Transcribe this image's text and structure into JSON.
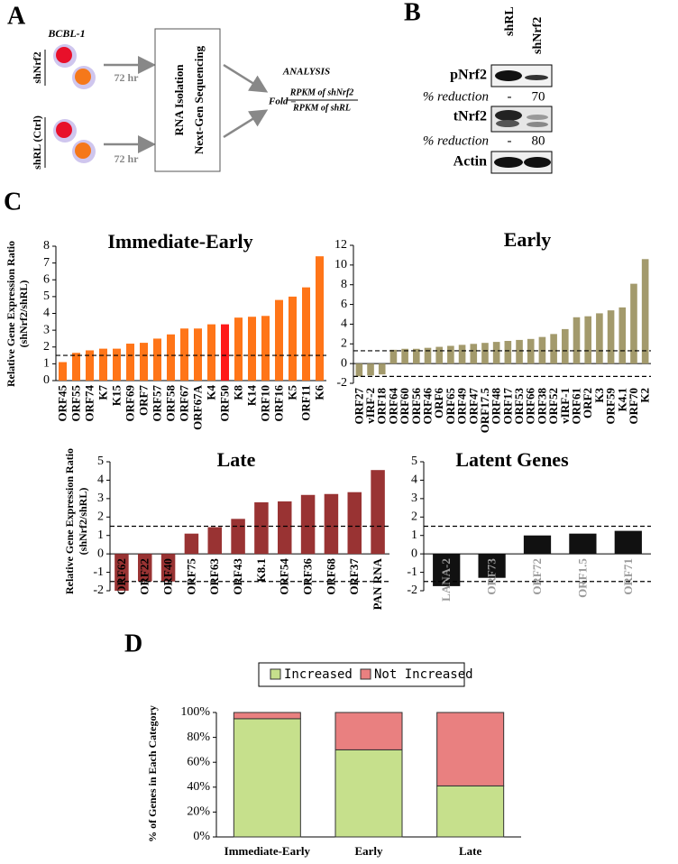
{
  "panel_labels": [
    "A",
    "B",
    "C",
    "D"
  ],
  "panel_a": {
    "cell_line": "BCBL-1",
    "groups": [
      "shNrf2",
      "shRL (Ctrl)"
    ],
    "incubation": [
      "72 hr",
      "72 hr"
    ],
    "process": [
      "RNA Isolation",
      "Next-Gen Sequencing"
    ],
    "analysis": "ANALYSIS",
    "fold_label": "Fold =",
    "numerator": "RPKM of shNrf2",
    "denominator": "RPKM of shRL"
  },
  "panel_b": {
    "lanes": [
      "shRL",
      "shNrf2"
    ],
    "blots": [
      "pNrf2",
      "tNrf2",
      "Actin"
    ],
    "reductions": [
      {
        "label": "% reduction",
        "values": [
          "-",
          70
        ]
      },
      {
        "label": "% reduction",
        "values": [
          "-",
          80
        ]
      }
    ]
  },
  "chart_data": [
    {
      "type": "bar",
      "title": "Immediate-Early",
      "y_label": [
        "Relative Gene Expression Ratio",
        "(shNrf2/shRL)"
      ],
      "categories": [
        "ORF45",
        "ORF55",
        "ORF74",
        "K7",
        "K15",
        "ORF69",
        "ORF7",
        "ORF57",
        "ORF58",
        "ORF67",
        "ORF67A",
        "K4",
        "ORF50",
        "K8",
        "K14",
        "ORF10",
        "ORF16",
        "K5",
        "ORF11",
        "K6"
      ],
      "values": [
        1.1,
        1.65,
        1.8,
        1.9,
        1.9,
        2.2,
        2.25,
        2.5,
        2.75,
        3.1,
        3.1,
        3.35,
        3.35,
        3.75,
        3.8,
        3.85,
        4.8,
        5.0,
        5.55,
        7.4
      ],
      "colors": [
        "#ff7518",
        "#ff7518",
        "#ff7518",
        "#ff7518",
        "#ff7518",
        "#ff7518",
        "#ff7518",
        "#ff7518",
        "#ff7518",
        "#ff7518",
        "#ff7518",
        "#ff7518",
        "#ff1a1a",
        "#ff7518",
        "#ff7518",
        "#ff7518",
        "#ff7518",
        "#ff7518",
        "#ff7518",
        "#ff7518"
      ],
      "ref_lines": [
        1.5
      ],
      "ylim": [
        0,
        8
      ],
      "yticks": [
        0,
        1,
        2,
        3,
        4,
        5,
        6,
        7,
        8
      ]
    },
    {
      "type": "bar",
      "title": "Early",
      "categories": [
        "ORF27",
        "vIRF-2",
        "ORF18",
        "ORF64",
        "ORF60",
        "ORF56",
        "ORF46",
        "ORF6",
        "ORF65",
        "ORF49",
        "ORF47",
        "ORF17.5",
        "ORF48",
        "ORF17",
        "ORF53",
        "ORF66",
        "ORF38",
        "ORF52",
        "vIRF-1",
        "ORF61",
        "ORF2",
        "K3",
        "ORF59",
        "K4.1",
        "ORF70",
        "K2"
      ],
      "values": [
        -1.3,
        -1.2,
        -1.1,
        1.4,
        1.5,
        1.5,
        1.6,
        1.7,
        1.8,
        1.9,
        2.0,
        2.1,
        2.2,
        2.3,
        2.4,
        2.5,
        2.7,
        3.0,
        3.5,
        4.7,
        4.8,
        5.1,
        5.4,
        5.7,
        8.1,
        10.6
      ],
      "color": "#a39a6c",
      "ref_lines": [
        1.3,
        -1.3
      ],
      "ylim": [
        -2,
        12
      ],
      "yticks": [
        -2,
        0,
        2,
        4,
        6,
        8,
        10,
        12
      ]
    },
    {
      "type": "bar",
      "title": "Late",
      "y_label": [
        "Relative Gene Expression Ratio",
        "(shNrf2/shRL)"
      ],
      "categories": [
        "ORF62",
        "ORF22",
        "ORF40",
        "ORF75",
        "ORF63",
        "ORF43",
        "K8.1",
        "ORF54",
        "ORF36",
        "ORF68",
        "ORF37",
        "PAN RNA"
      ],
      "values": [
        -2,
        -1.5,
        -1.5,
        1.1,
        1.45,
        1.9,
        2.8,
        2.85,
        3.2,
        3.25,
        3.35,
        4.55
      ],
      "color": "#993333",
      "ref_lines": [
        1.5,
        -1.5
      ],
      "ylim": [
        -2,
        5
      ],
      "yticks": [
        -2,
        -1,
        0,
        1,
        2,
        3,
        4,
        5
      ]
    },
    {
      "type": "bar",
      "title": "Latent Genes",
      "categories": [
        "LANA-2",
        "ORF73",
        "ORF72",
        "ORF1.5",
        "ORF71"
      ],
      "values": [
        -1.75,
        -1.3,
        1.0,
        1.1,
        1.25
      ],
      "color": "#111111",
      "label_color": "#9a9a9a",
      "ref_lines": [
        1.5,
        -1.5
      ],
      "ylim": [
        -2,
        5
      ],
      "yticks": [
        -2,
        -1,
        0,
        1,
        2,
        3,
        4,
        5
      ]
    },
    {
      "type": "stacked_bar",
      "y_label": "% of Genes in Each Category",
      "categories": [
        "Immediate-Early",
        "Early",
        "Late"
      ],
      "series": [
        {
          "name": "Increased",
          "color": "#c6e08c",
          "values": [
            95,
            70,
            41
          ]
        },
        {
          "name": "Not Increased",
          "color": "#e98080",
          "values": [
            5,
            30,
            59
          ]
        }
      ],
      "ylim": [
        0,
        100
      ],
      "yticks": [
        {
          "value": 0,
          "label": "0%"
        },
        {
          "value": 20,
          "label": "20%"
        },
        {
          "value": 40,
          "label": "40%"
        },
        {
          "value": 60,
          "label": "60%"
        },
        {
          "value": 80,
          "label": "80%"
        },
        {
          "value": 100,
          "label": "100%"
        }
      ]
    }
  ]
}
